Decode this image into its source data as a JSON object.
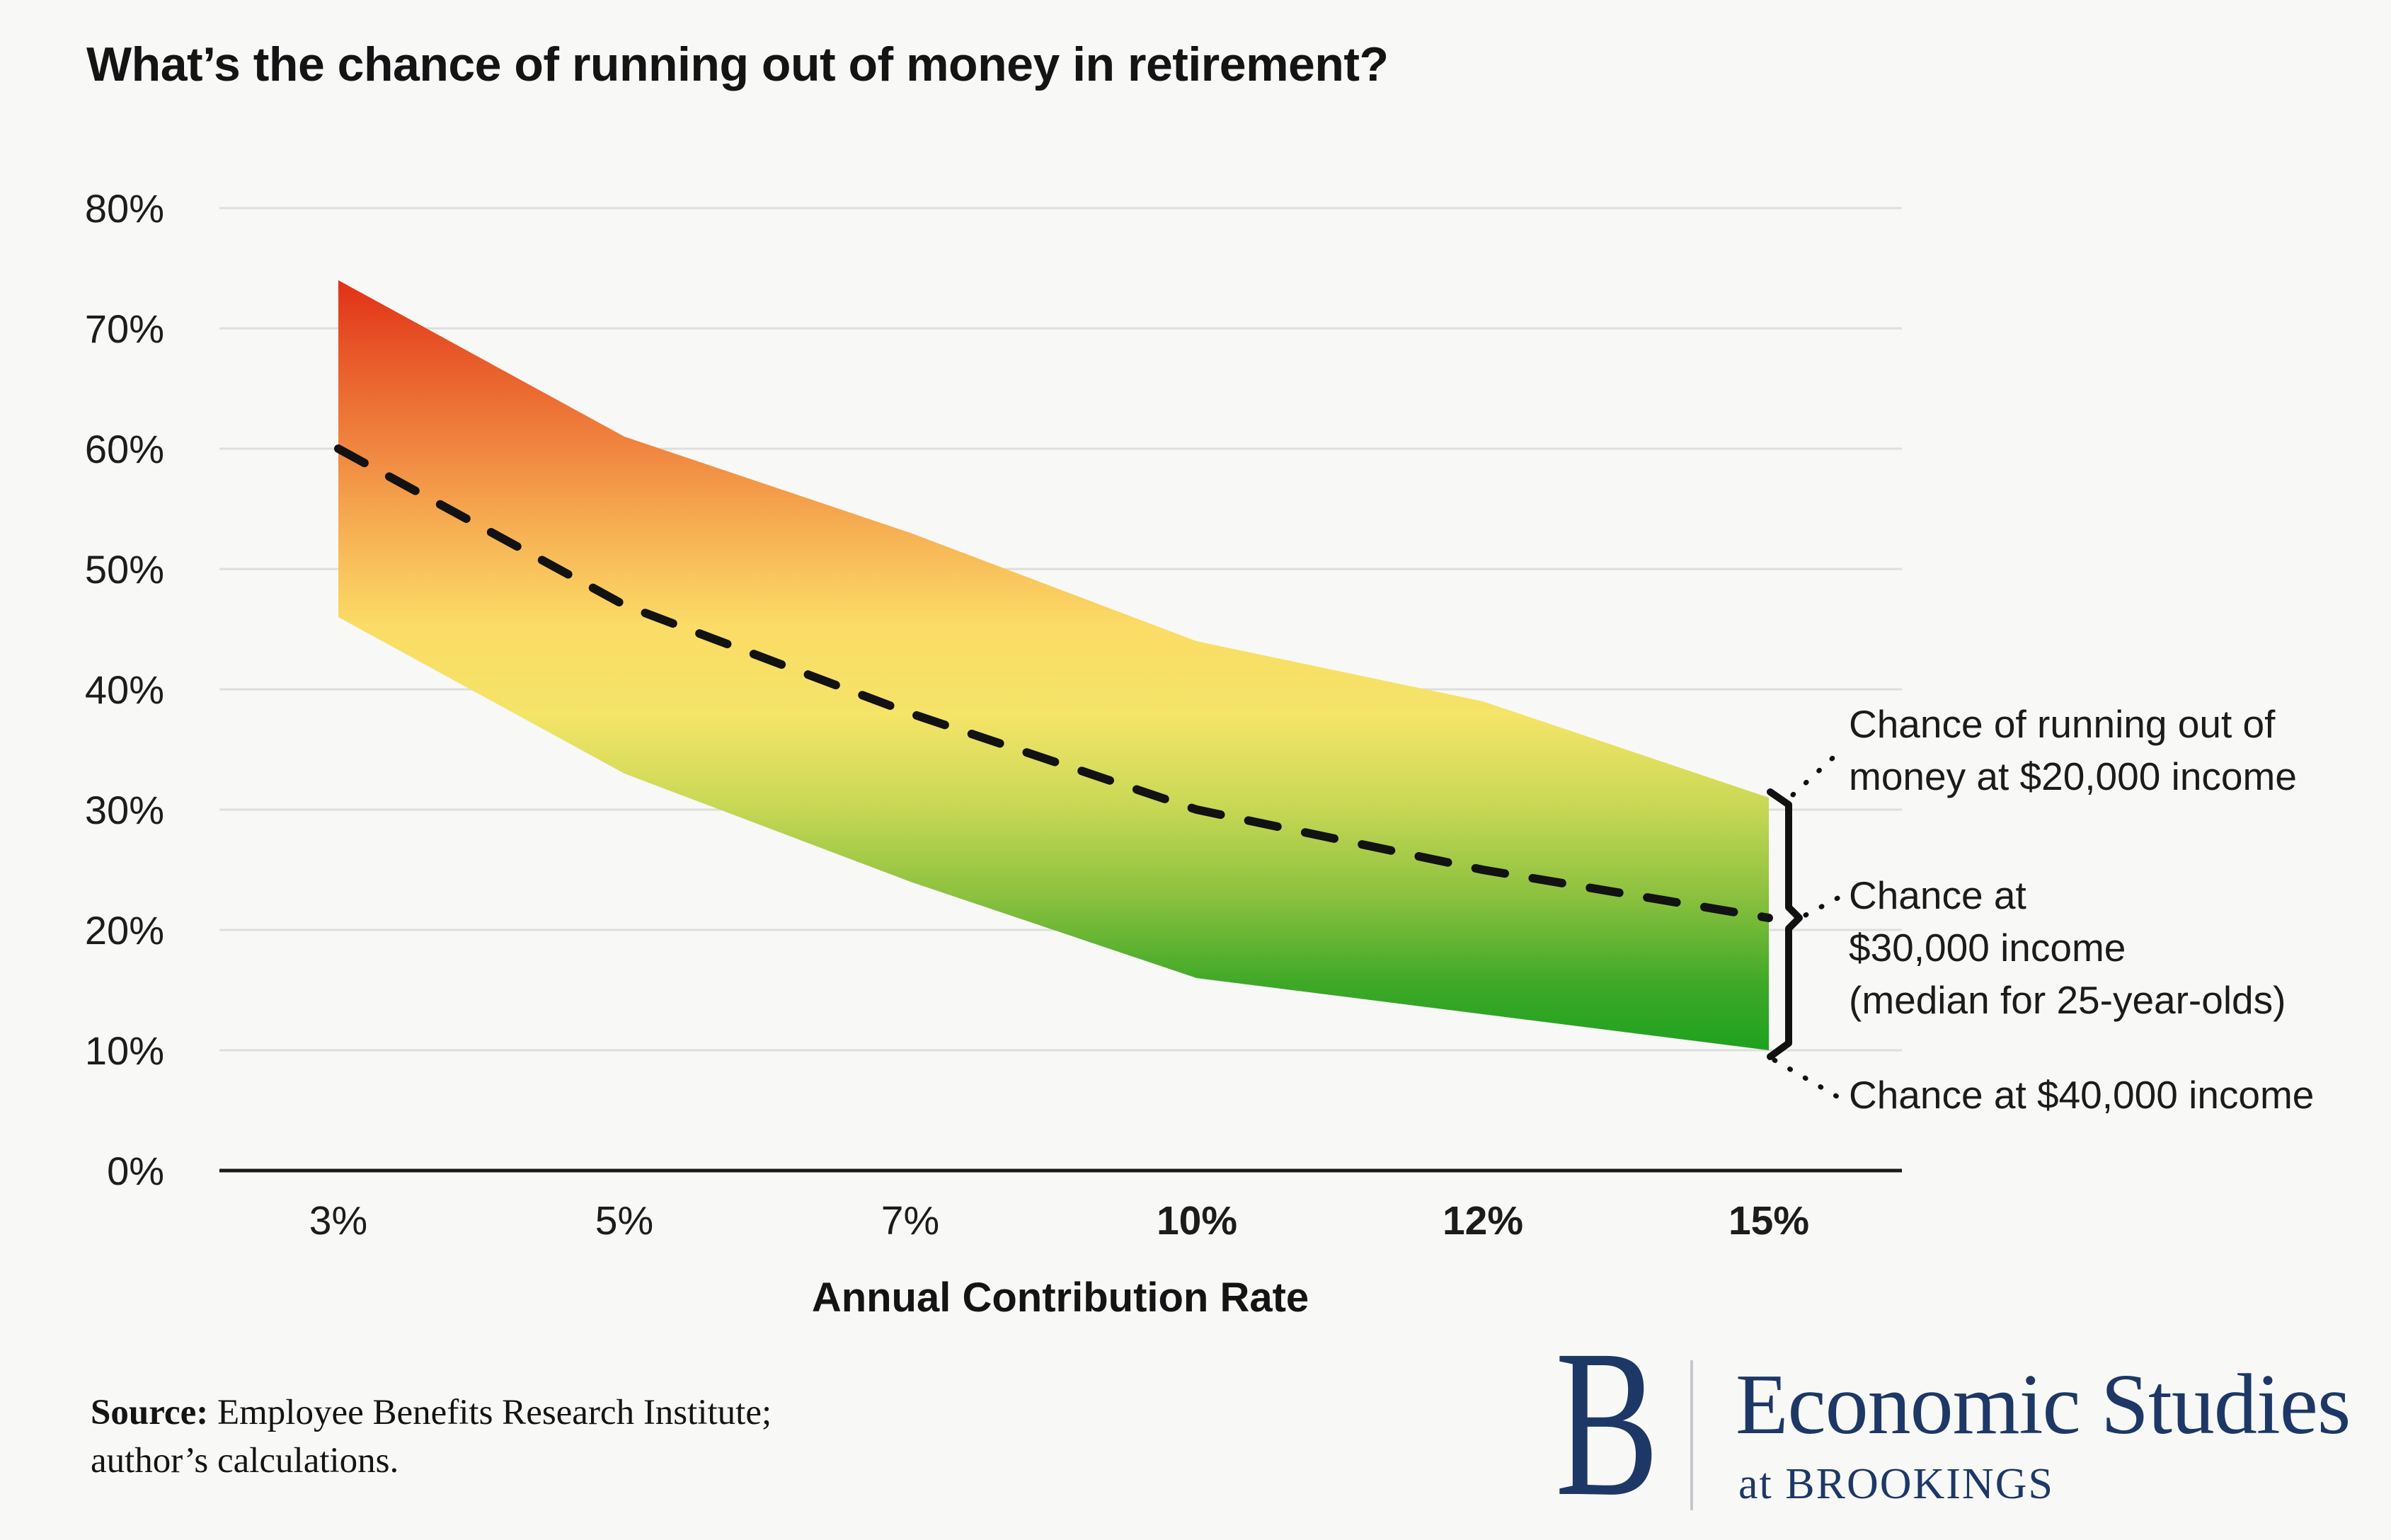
{
  "title": "What’s the chance of running out of money in retirement?",
  "chart_data": {
    "type": "area",
    "x_categories": [
      "3%",
      "5%",
      "7%",
      "10%",
      "12%",
      "15%"
    ],
    "xlabel": "Annual Contribution Rate",
    "ylabel": "",
    "y_ticks": [
      "0%",
      "10%",
      "20%",
      "30%",
      "40%",
      "50%",
      "60%",
      "70%",
      "80%"
    ],
    "ylim": [
      0,
      80
    ],
    "grid": true,
    "legend_position": "right-annotations",
    "series": [
      {
        "name": "Chance of running out of money at $20,000 income",
        "role": "band_top",
        "values": [
          74,
          61,
          53,
          44,
          39,
          31
        ]
      },
      {
        "name": "Chance at $30,000 income (median for 25-year-olds)",
        "role": "median_dashed_line",
        "values": [
          60,
          47,
          38,
          30,
          25,
          21
        ]
      },
      {
        "name": "Chance at $40,000 income",
        "role": "band_bottom",
        "values": [
          46,
          33,
          24,
          16,
          13,
          10
        ]
      }
    ],
    "band_gradient": [
      "#e02a14",
      "#e85a2a",
      "#f0853f",
      "#f7b355",
      "#fbdc66",
      "#f4e468",
      "#c8d855",
      "#8cc13f",
      "#3ea827",
      "#12a01c"
    ],
    "median_line_color": "#121212"
  },
  "annotations": {
    "top": "Chance of running out of\nmoney at $20,000 income",
    "middle": "Chance at\n$30,000 income\n(median for 25-year-olds)",
    "bottom": "Chance at $40,000 income"
  },
  "source": {
    "label": "Source:",
    "text": " Employee Benefits Research Institute;",
    "line2": "author’s calculations."
  },
  "logo": {
    "letter": "B",
    "name": "Economic Studies",
    "sub": "at BROOKINGS",
    "color": "#1d3866"
  }
}
